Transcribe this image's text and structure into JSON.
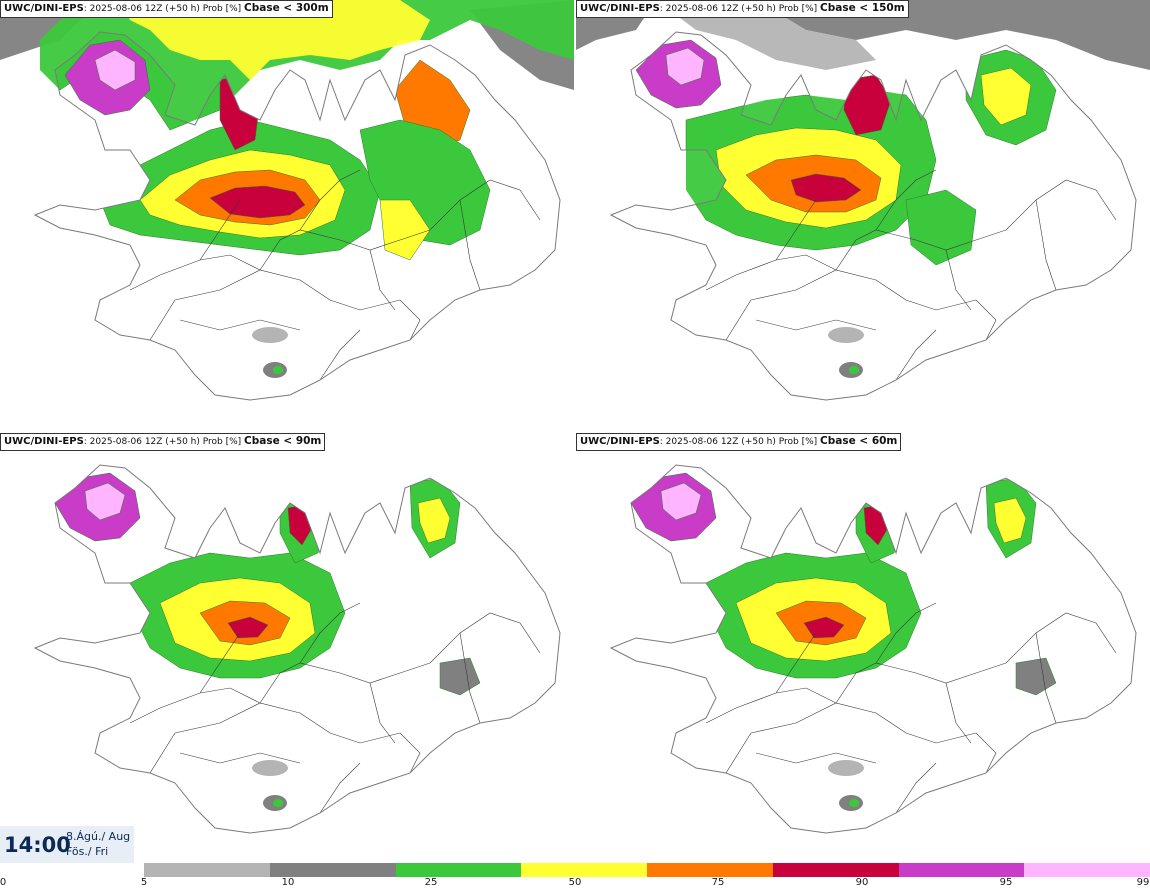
{
  "panels": [
    {
      "model": "UWC/DINI-EPS",
      "run": ": 2025-08-06 12Z (+50 h) Prob [%] ",
      "threshold": "Cbase < 300m",
      "level": 4
    },
    {
      "model": "UWC/DINI-EPS",
      "run": ": 2025-08-06 12Z (+50 h) Prob [%] ",
      "threshold": "Cbase < 150m",
      "level": 3
    },
    {
      "model": "UWC/DINI-EPS",
      "run": ": 2025-08-06 12Z (+50 h) Prob [%] ",
      "threshold": "Cbase < 90m",
      "level": 2
    },
    {
      "model": "UWC/DINI-EPS",
      "run": ": 2025-08-06 12Z (+50 h) Prob [%] ",
      "threshold": "Cbase < 60m",
      "level": 2
    }
  ],
  "valid_time": {
    "time": "14:00",
    "date_line1": "8.Ágú./ Aug",
    "date_line2": "Fös./ Fri"
  },
  "colorbar": {
    "ticks": [
      "0",
      "5",
      "10",
      "25",
      "50",
      "75",
      "90",
      "95",
      "99"
    ],
    "colors": [
      "#b4b4b4",
      "#808080",
      "#3cc83c",
      "#ffff32",
      "#ff7800",
      "#c8003c",
      "#c83cc8",
      "#ffb4ff"
    ]
  },
  "map_colors": {
    "land": "#ffffff",
    "coast": "#7a7a7a",
    "roads": "#3a3a3a"
  }
}
